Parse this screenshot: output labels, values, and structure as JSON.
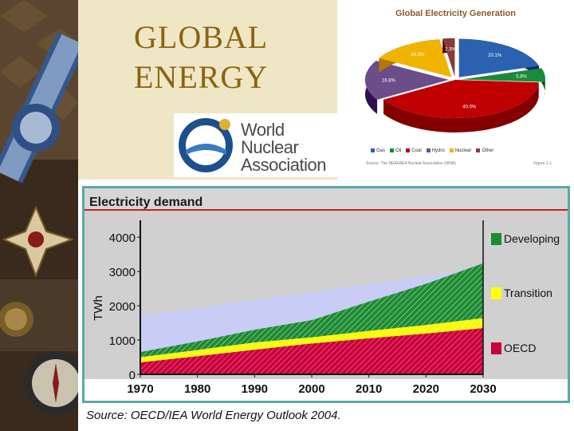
{
  "slide": {
    "title": "GLOBAL\nENERGY"
  },
  "logo": {
    "lines": [
      "World",
      "Nuclear",
      "Association"
    ]
  },
  "pie_chart": {
    "title": "Global Electricity Generation",
    "legend": [
      "Gas",
      "Oil",
      "Coal",
      "Hydro",
      "Nuclear",
      "Other"
    ],
    "source": "Source: The NEA/IAEA Nuclear Association (WNA)",
    "page": "Figure 1-1"
  },
  "demand_chart": {
    "source": "Source: OECD/IEA World Energy Outlook 2004."
  },
  "colors": {
    "gas": "#2a62b0",
    "oil": "#1a8a3a",
    "coal": "#c00000",
    "hydro": "#6b4d8a",
    "nuclear": "#f0b400",
    "other": "#8a3a3a",
    "developing": "#1e8a35",
    "transition": "#ffff00",
    "oecd": "#c8003c",
    "frame": "#5aa9a8",
    "title_gold": "#8a6410"
  },
  "chart_data": [
    {
      "type": "pie",
      "title": "Global Electricity Generation",
      "categories": [
        "Gas",
        "Oil",
        "Coal",
        "Hydro",
        "Nuclear",
        "Other"
      ],
      "values": [
        20.1,
        5.8,
        40.0,
        16.8,
        14.3,
        2.3
      ],
      "value_labels": [
        "20.1%",
        "5.8%",
        "40.0%",
        "16.8%",
        "14.3%",
        "2.3%"
      ],
      "legend_position": "bottom"
    },
    {
      "type": "area",
      "title": "Electricity demand",
      "xlabel": "",
      "ylabel": "TWh",
      "x": [
        1970,
        1980,
        1990,
        2000,
        2010,
        2020,
        2030
      ],
      "x_ticks": [
        "1970",
        "1980",
        "1990",
        "2000",
        "2010",
        "2020",
        "2030"
      ],
      "y_ticks": [
        "0",
        "1000",
        "2000",
        "3000",
        "4000"
      ],
      "ylim": [
        0,
        4400
      ],
      "stacked": true,
      "series": [
        {
          "name": "OECD",
          "values": [
            350,
            530,
            720,
            900,
            1050,
            1190,
            1350
          ]
        },
        {
          "name": "Transition",
          "values": [
            150,
            180,
            210,
            180,
            220,
            250,
            290
          ]
        },
        {
          "name": "Developing",
          "values": [
            150,
            250,
            370,
            500,
            850,
            1200,
            1600
          ]
        }
      ],
      "legend_position": "right",
      "grid": false
    }
  ]
}
